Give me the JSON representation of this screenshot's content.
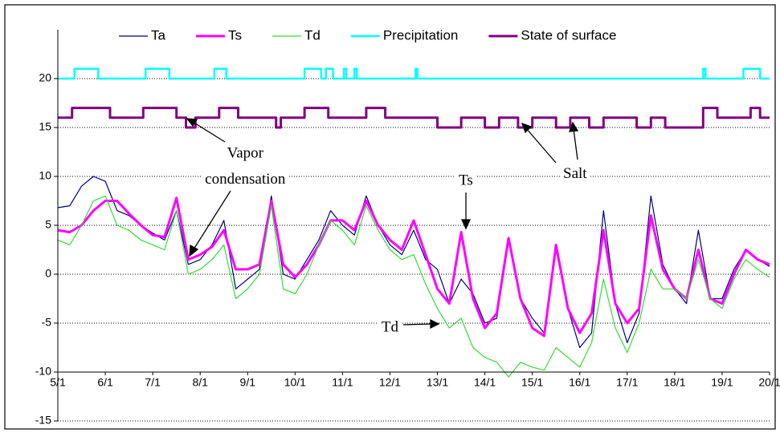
{
  "chart_data": {
    "type": "line",
    "x": [
      5,
      5.25,
      5.5,
      5.75,
      6,
      6.25,
      6.5,
      6.75,
      7,
      7.25,
      7.5,
      7.75,
      8,
      8.25,
      8.5,
      8.75,
      9,
      9.25,
      9.5,
      9.75,
      10,
      10.25,
      10.5,
      10.75,
      11,
      11.25,
      11.5,
      11.75,
      12,
      12.25,
      12.5,
      12.75,
      13,
      13.25,
      13.5,
      13.75,
      14,
      14.25,
      14.5,
      14.75,
      15,
      15.25,
      15.5,
      15.75,
      16,
      16.25,
      16.5,
      16.75,
      17,
      17.25,
      17.5,
      17.75,
      18,
      18.25,
      18.5,
      18.75,
      19,
      19.25,
      19.5,
      19.75,
      20
    ],
    "xlim": [
      5,
      20
    ],
    "xticks": [
      {
        "value": 5,
        "label": "5/1"
      },
      {
        "value": 6,
        "label": "6/1"
      },
      {
        "value": 7,
        "label": "7/1"
      },
      {
        "value": 8,
        "label": "8/1"
      },
      {
        "value": 9,
        "label": "9/1"
      },
      {
        "value": 10,
        "label": "10/1"
      },
      {
        "value": 11,
        "label": "11/1"
      },
      {
        "value": 12,
        "label": "12/1"
      },
      {
        "value": 13,
        "label": "13/1"
      },
      {
        "value": 14,
        "label": "14/1"
      },
      {
        "value": 15,
        "label": "15/1"
      },
      {
        "value": 16,
        "label": "16/1"
      },
      {
        "value": 17,
        "label": "17/1"
      },
      {
        "value": 18,
        "label": "18/1"
      },
      {
        "value": 19,
        "label": "19/1"
      },
      {
        "value": 20,
        "label": "20/1"
      }
    ],
    "ylim": [
      -15,
      25
    ],
    "yticks": [
      -15,
      -10,
      -5,
      0,
      5,
      10,
      15,
      20
    ],
    "x_axis_crosses": -10,
    "grid": true,
    "legend": "top",
    "series": [
      {
        "name": "Ta",
        "color": "#000080",
        "line_width": 1.2,
        "values": [
          6.8,
          7.0,
          9.0,
          10.0,
          9.5,
          6.5,
          6.0,
          5.0,
          4.2,
          3.5,
          6.5,
          1.0,
          1.5,
          3.0,
          5.5,
          -1.5,
          -0.5,
          0.5,
          8.0,
          0.0,
          -0.5,
          1.5,
          3.5,
          6.5,
          5.0,
          4.0,
          8.0,
          5.0,
          3.0,
          2.0,
          4.5,
          1.5,
          0.5,
          -3.0,
          -0.5,
          -2.0,
          -5.0,
          -4.5,
          3.5,
          -2.5,
          -4.5,
          -6.0,
          2.5,
          -3.5,
          -7.5,
          -6.0,
          6.5,
          -3.0,
          -7.0,
          -4.0,
          8.0,
          1.0,
          -1.5,
          -3.0,
          4.5,
          -2.5,
          -2.5,
          0.5,
          2.5,
          1.5,
          0.8
        ]
      },
      {
        "name": "Ts",
        "color": "#ff00ff",
        "line_width": 3,
        "values": [
          4.5,
          4.3,
          5.0,
          6.5,
          7.5,
          7.5,
          6.2,
          5.0,
          4.0,
          3.8,
          7.8,
          1.5,
          2.0,
          2.8,
          4.5,
          0.5,
          0.5,
          1.0,
          7.5,
          1.0,
          -0.3,
          1.0,
          3.0,
          5.5,
          5.5,
          4.5,
          7.5,
          5.0,
          3.5,
          2.5,
          5.5,
          2.0,
          -1.5,
          -3.0,
          4.3,
          -2.5,
          -5.5,
          -4.0,
          3.7,
          -2.5,
          -5.5,
          -6.3,
          3.0,
          -3.5,
          -6.0,
          -4.0,
          4.5,
          -3.0,
          -5.0,
          -3.5,
          6.0,
          0.5,
          -1.5,
          -2.5,
          2.5,
          -2.5,
          -3.0,
          0.0,
          2.5,
          1.5,
          1.0
        ]
      },
      {
        "name": "Td",
        "color": "#33dd33",
        "line_width": 1.2,
        "values": [
          3.5,
          3.0,
          5.0,
          7.5,
          8.0,
          5.0,
          4.5,
          3.5,
          3.0,
          2.5,
          6.5,
          0.0,
          0.5,
          1.5,
          3.0,
          -2.5,
          -1.5,
          0.0,
          7.0,
          -1.5,
          -2.0,
          0.0,
          3.0,
          5.5,
          4.5,
          3.0,
          7.0,
          4.5,
          2.5,
          1.5,
          2.0,
          -1.0,
          -3.5,
          -5.5,
          -4.5,
          -7.5,
          -8.5,
          -9.0,
          -10.5,
          -9.0,
          -9.5,
          -9.8,
          -7.5,
          -8.5,
          -9.5,
          -7.0,
          -0.5,
          -5.5,
          -8.0,
          -5.0,
          0.5,
          -1.5,
          -1.5,
          -2.5,
          1.5,
          -2.5,
          -3.5,
          -0.5,
          1.5,
          0.5,
          -0.3
        ]
      },
      {
        "name": "Precipitation",
        "color": "#00ffff",
        "line_width": 2.5,
        "x": [
          5,
          5.35,
          5.35,
          5.85,
          5.85,
          6.85,
          6.85,
          7.35,
          7.35,
          8.3,
          8.3,
          8.55,
          8.55,
          10.2,
          10.2,
          10.55,
          10.55,
          10.65,
          10.65,
          10.8,
          10.8,
          11.03,
          11.03,
          11.08,
          11.08,
          11.25,
          11.25,
          11.3,
          11.3,
          12.54,
          12.54,
          12.58,
          12.58,
          18.6,
          18.6,
          18.65,
          18.65,
          19.45,
          19.45,
          19.8,
          19.8,
          20
        ],
        "values": [
          20,
          20,
          21,
          21,
          20,
          20,
          21,
          21,
          20,
          20,
          21,
          21,
          20,
          20,
          21,
          21,
          20,
          20,
          21,
          21,
          20,
          20,
          21,
          21,
          20,
          20,
          21,
          21,
          20,
          20,
          21,
          21,
          20,
          20,
          21,
          21,
          20,
          20,
          21,
          21,
          20,
          20
        ]
      },
      {
        "name": "State of surface",
        "color": "#800080",
        "line_width": 3,
        "x": [
          5,
          5.3,
          5.3,
          6.1,
          6.1,
          6.8,
          6.8,
          7.5,
          7.5,
          7.7,
          7.7,
          7.9,
          7.9,
          8.4,
          8.4,
          8.8,
          8.8,
          9.6,
          9.6,
          9.7,
          9.7,
          10.2,
          10.2,
          10.7,
          10.7,
          11.5,
          11.5,
          11.9,
          11.9,
          13.0,
          13.0,
          13.5,
          13.5,
          14.0,
          14.0,
          14.3,
          14.3,
          14.7,
          14.7,
          15.0,
          15.0,
          15.5,
          15.5,
          15.8,
          15.8,
          16.2,
          16.2,
          16.5,
          16.5,
          17.2,
          17.2,
          17.5,
          17.5,
          17.8,
          17.8,
          18.6,
          18.6,
          18.9,
          18.9,
          19.6,
          19.6,
          19.8,
          19.8,
          20
        ],
        "values": [
          16,
          16,
          17,
          17,
          16,
          16,
          17,
          17,
          16,
          16,
          15,
          15,
          16,
          16,
          17,
          17,
          16,
          16,
          15,
          15,
          16,
          16,
          17,
          17,
          16,
          16,
          17,
          17,
          16,
          16,
          15,
          15,
          16,
          16,
          15,
          15,
          16,
          16,
          15,
          15,
          16,
          16,
          15,
          15,
          16,
          16,
          15,
          15,
          16,
          16,
          15,
          15,
          16,
          16,
          15,
          15,
          17,
          17,
          16,
          16,
          17,
          17,
          16,
          16
        ]
      }
    ],
    "annotations": [
      {
        "text": "Vapor",
        "x": 8.95,
        "y": 12.3
      },
      {
        "text": "condensation",
        "x": 8.95,
        "y": 9.6
      },
      {
        "text": "Salt",
        "x": 15.9,
        "y": 10.2
      },
      {
        "text": "Ts",
        "x": 13.6,
        "y": 9.5
      },
      {
        "text": "Td",
        "x": 12.0,
        "y": -5.5
      }
    ]
  }
}
